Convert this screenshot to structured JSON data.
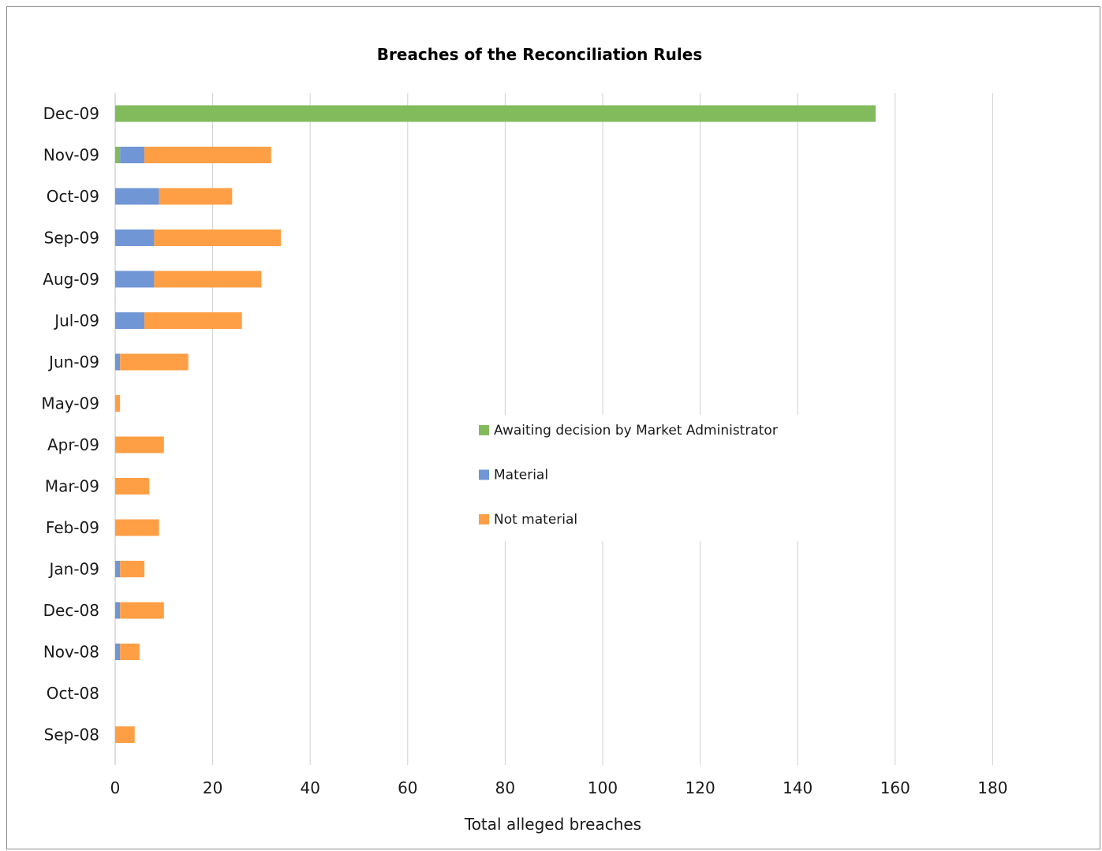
{
  "chart_data": {
    "type": "bar",
    "orientation": "horizontal",
    "stacked": true,
    "title": "Breaches of the Reconciliation Rules",
    "xlabel": "Total alleged breaches",
    "ylabel": "",
    "xlim": [
      0,
      190
    ],
    "xticks": [
      0,
      20,
      40,
      60,
      80,
      100,
      120,
      140,
      160,
      180
    ],
    "grid": "vertical",
    "legend_position": "center",
    "categories": [
      "Dec-09",
      "Nov-09",
      "Oct-09",
      "Sep-09",
      "Aug-09",
      "Jul-09",
      "Jun-09",
      "May-09",
      "Apr-09",
      "Mar-09",
      "Feb-09",
      "Jan-09",
      "Dec-08",
      "Nov-08",
      "Oct-08",
      "Sep-08"
    ],
    "series": [
      {
        "name": "Awaiting decision by Market Administrator",
        "color": "#82bb5c",
        "values": [
          156,
          1,
          0,
          0,
          0,
          0,
          0,
          0,
          0,
          0,
          0,
          0,
          0,
          0,
          0,
          0
        ]
      },
      {
        "name": "Material",
        "color": "#7096d6",
        "values": [
          0,
          5,
          9,
          8,
          8,
          6,
          1,
          0,
          0,
          0,
          0,
          1,
          1,
          1,
          0,
          0
        ]
      },
      {
        "name": "Not material",
        "color": "#ff9f45",
        "values": [
          0,
          26,
          15,
          26,
          22,
          20,
          14,
          1,
          10,
          7,
          9,
          5,
          9,
          4,
          0,
          4
        ]
      }
    ]
  }
}
